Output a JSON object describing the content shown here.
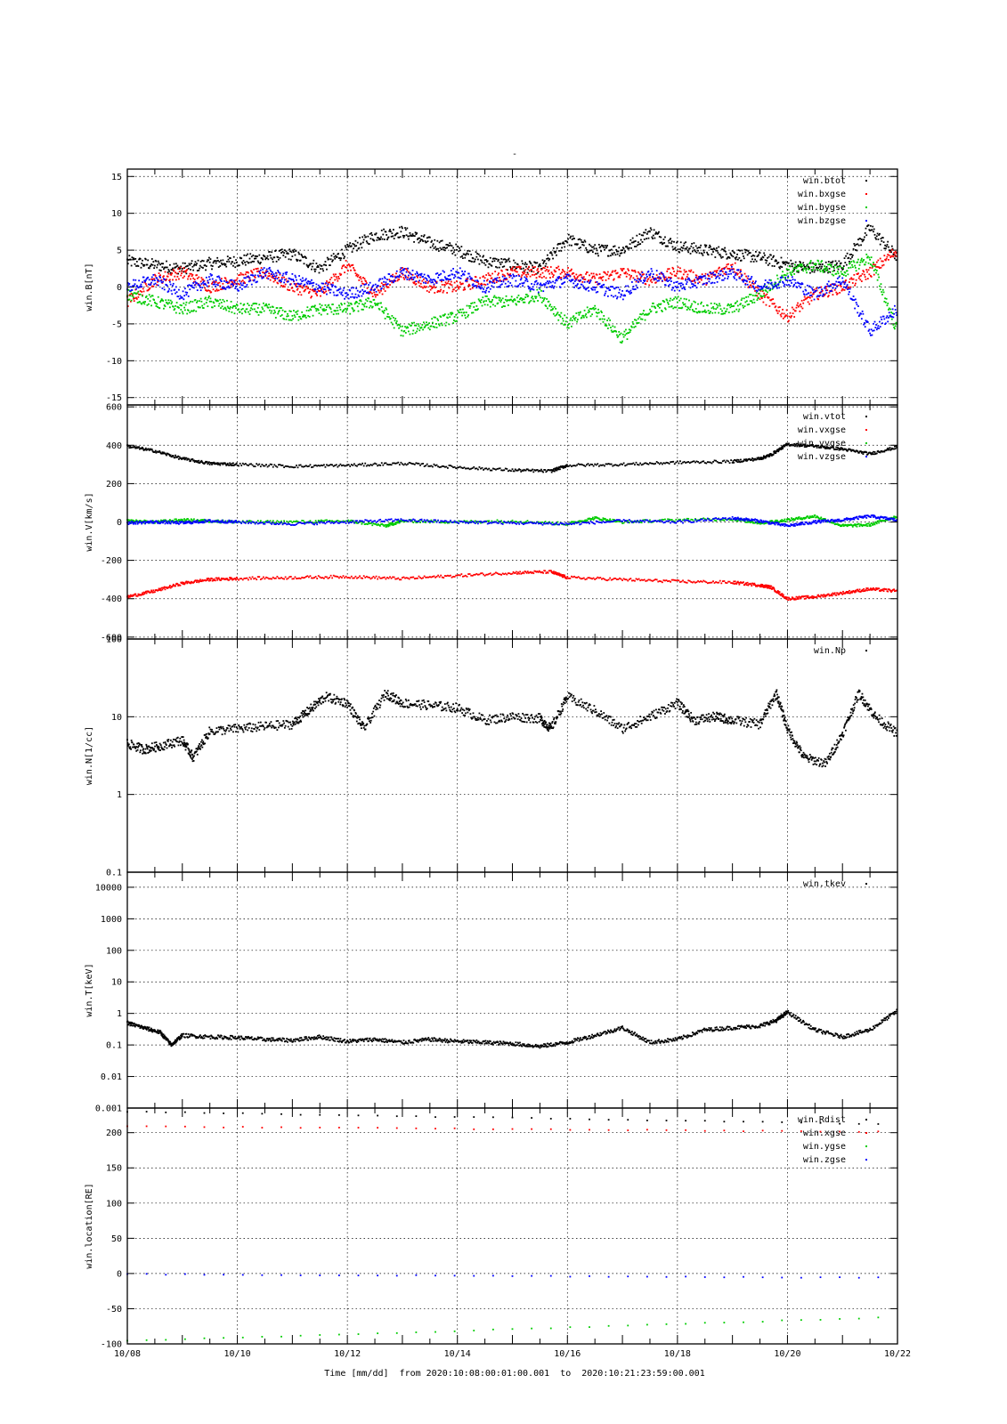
{
  "title": "-",
  "chart_data": [
    {
      "type": "scatter",
      "ylabel": "win.B[nT]",
      "ylim": [
        -16,
        16
      ],
      "yticks": [
        -15,
        -10,
        -5,
        0,
        5,
        10,
        15
      ],
      "ytick_labels": [
        "-15",
        "-10",
        "-5",
        "0",
        "5",
        "10",
        "15"
      ],
      "legend_position": "top-right",
      "series": [
        {
          "name": "win.btot",
          "color": "#000000",
          "x": [
            0,
            0.5,
            1,
            1.5,
            2,
            2.5,
            3,
            3.5,
            4,
            4.5,
            5,
            5.5,
            6,
            6.5,
            7,
            7.5,
            8,
            8.5,
            9,
            9.5,
            10,
            10.5,
            11,
            11.5,
            12,
            12.5,
            13,
            13.5,
            14
          ],
          "y": [
            3.5,
            3,
            2.5,
            3.2,
            3.5,
            4,
            4.5,
            2.5,
            5,
            7,
            7.5,
            6,
            5,
            3.5,
            3,
            2.5,
            6.5,
            5,
            5,
            7.5,
            5.5,
            5,
            4.5,
            4,
            3,
            2.5,
            3,
            8,
            4
          ]
        },
        {
          "name": "win.bxgse",
          "color": "#ff0000",
          "x": [
            0,
            0.5,
            1,
            1.5,
            2,
            2.5,
            3,
            3.5,
            4,
            4.5,
            5,
            5.5,
            6,
            6.5,
            7,
            7.5,
            8,
            8.5,
            9,
            9.5,
            10,
            10.5,
            11,
            11.5,
            12,
            12.5,
            13,
            13.5,
            14
          ],
          "y": [
            -2,
            1,
            2,
            0,
            1,
            2,
            0,
            -1,
            3,
            -1,
            2,
            0,
            0,
            1,
            2,
            2,
            2,
            1,
            2,
            1,
            2,
            1,
            3,
            -1,
            -4,
            -1,
            0,
            2,
            5
          ]
        },
        {
          "name": "win.bygse",
          "color": "#00cc00",
          "x": [
            0,
            0.5,
            1,
            1.5,
            2,
            2.5,
            3,
            3.5,
            4,
            4.5,
            5,
            5.5,
            6,
            6.5,
            7,
            7.5,
            8,
            8.5,
            9,
            9.5,
            10,
            10.5,
            11,
            11.5,
            12,
            12.5,
            13,
            13.5,
            14
          ],
          "y": [
            -1,
            -2,
            -3,
            -2,
            -3,
            -3,
            -4,
            -3,
            -3,
            -2,
            -6,
            -5,
            -4,
            -2,
            -2,
            -1,
            -5,
            -3,
            -7,
            -3,
            -2,
            -3,
            -3,
            -1,
            2,
            3,
            2,
            4,
            -6
          ]
        },
        {
          "name": "win.bzgse",
          "color": "#0000ff",
          "x": [
            0,
            0.5,
            1,
            1.5,
            2,
            2.5,
            3,
            3.5,
            4,
            4.5,
            5,
            5.5,
            6,
            6.5,
            7,
            7.5,
            8,
            8.5,
            9,
            9.5,
            10,
            10.5,
            11,
            11.5,
            12,
            12.5,
            13,
            13.5,
            14
          ],
          "y": [
            0,
            1,
            -1,
            1,
            0,
            2,
            1,
            0,
            -1,
            0,
            2,
            1,
            2,
            0,
            1,
            0,
            1,
            0,
            -1,
            2,
            0,
            1,
            2,
            0,
            1,
            -1,
            1,
            -6,
            -3
          ]
        }
      ]
    },
    {
      "type": "scatter",
      "ylabel": "win.V[km/s]",
      "ylim": [
        -610,
        610
      ],
      "yticks": [
        -600,
        -400,
        -200,
        0,
        200,
        400,
        600
      ],
      "ytick_labels": [
        "-600",
        "-400",
        "-200",
        "0",
        "200",
        "400",
        "600"
      ],
      "legend_position": "top-right",
      "series": [
        {
          "name": "win.vtot",
          "color": "#000000",
          "x": [
            0,
            0.5,
            1,
            1.5,
            2,
            3,
            4,
            5,
            6,
            7,
            7.7,
            8,
            9,
            10,
            11,
            11.5,
            11.7,
            12,
            12.5,
            13,
            13.5,
            14
          ],
          "y": [
            395,
            370,
            330,
            305,
            300,
            290,
            295,
            305,
            285,
            270,
            265,
            295,
            300,
            310,
            315,
            330,
            350,
            405,
            395,
            380,
            355,
            390
          ]
        },
        {
          "name": "win.vxgse",
          "color": "#ff0000",
          "x": [
            0,
            0.5,
            1,
            1.5,
            2,
            3,
            4,
            5,
            6,
            7,
            7.7,
            8,
            9,
            10,
            11,
            11.5,
            11.7,
            12,
            12.5,
            13,
            13.5,
            14
          ],
          "y": [
            -390,
            -360,
            -320,
            -300,
            -295,
            -290,
            -285,
            -295,
            -280,
            -265,
            -260,
            -290,
            -300,
            -310,
            -315,
            -330,
            -340,
            -400,
            -390,
            -370,
            -350,
            -360
          ]
        },
        {
          "name": "win.vygse",
          "color": "#00cc00",
          "x": [
            0,
            0.5,
            1,
            1.5,
            2,
            3,
            4,
            4.7,
            5,
            6,
            7,
            8,
            8.5,
            9,
            10,
            11,
            11.5,
            12,
            12.5,
            13,
            13.5,
            14
          ],
          "y": [
            5,
            0,
            10,
            5,
            0,
            0,
            5,
            -20,
            5,
            0,
            5,
            -10,
            20,
            0,
            10,
            15,
            -5,
            10,
            30,
            -20,
            -15,
            30
          ]
        },
        {
          "name": "win.vzgse",
          "color": "#0000ff",
          "x": [
            0,
            0.5,
            1,
            1.5,
            2,
            3,
            4,
            5,
            6,
            7,
            8,
            9,
            10,
            11,
            11.5,
            12,
            12.5,
            13,
            13.5,
            14
          ],
          "y": [
            -5,
            0,
            -5,
            5,
            0,
            -10,
            0,
            10,
            0,
            -5,
            -10,
            5,
            0,
            20,
            5,
            -20,
            0,
            10,
            30,
            10
          ]
        }
      ]
    },
    {
      "type": "scatter",
      "ylabel": "win.N[1/cc]",
      "yscale": "log",
      "ylim": [
        0.1,
        100
      ],
      "yticks": [
        0.1,
        1,
        10,
        100
      ],
      "ytick_labels": [
        "0.1",
        "1",
        "10",
        "100"
      ],
      "legend_position": "top-right",
      "series": [
        {
          "name": "win.Np",
          "color": "#000000",
          "x": [
            0,
            0.3,
            0.6,
            1,
            1.2,
            1.5,
            2,
            2.5,
            3,
            3.3,
            3.6,
            4,
            4.3,
            4.7,
            5,
            5.5,
            6,
            6.5,
            7,
            7.5,
            7.7,
            8,
            8.5,
            9,
            9.5,
            10,
            10.3,
            10.7,
            11,
            11.5,
            11.8,
            12,
            12.3,
            12.7,
            13,
            13.3,
            13.6,
            14
          ],
          "y": [
            4.5,
            3.8,
            4.2,
            5,
            3,
            6.5,
            7,
            7.5,
            8,
            12,
            18,
            15,
            7,
            20,
            15,
            14,
            13,
            9,
            10,
            9.5,
            7,
            18,
            12,
            7,
            10,
            15,
            9,
            10,
            9,
            8,
            20,
            7,
            3,
            2.5,
            6,
            20,
            10,
            6
          ]
        }
      ]
    },
    {
      "type": "scatter",
      "ylabel": "win.T[keV]",
      "yscale": "log",
      "ylim": [
        0.001,
        30000
      ],
      "yticks": [
        0.001,
        0.01,
        0.1,
        1,
        10,
        100,
        1000,
        10000
      ],
      "ytick_labels": [
        "0.001",
        "0.01",
        "0.1",
        "1",
        "10",
        "100",
        "1000",
        "10000"
      ],
      "legend_position": "top-right",
      "series": [
        {
          "name": "win.tkev",
          "color": "#000000",
          "x": [
            0,
            0.3,
            0.6,
            0.8,
            1,
            1.5,
            2,
            2.5,
            3,
            3.5,
            4,
            4.5,
            5,
            5.5,
            6,
            6.5,
            7,
            7.5,
            8,
            8.5,
            9,
            9.5,
            10,
            10.5,
            11,
            11.5,
            11.8,
            12,
            12.5,
            13,
            13.5,
            14
          ],
          "y": [
            0.5,
            0.35,
            0.25,
            0.1,
            0.2,
            0.18,
            0.17,
            0.15,
            0.14,
            0.18,
            0.13,
            0.15,
            0.12,
            0.15,
            0.13,
            0.12,
            0.11,
            0.09,
            0.12,
            0.2,
            0.35,
            0.12,
            0.15,
            0.3,
            0.35,
            0.4,
            0.6,
            1.1,
            0.3,
            0.18,
            0.3,
            1.2
          ]
        }
      ]
    },
    {
      "type": "scatter",
      "ylabel": "win.location[RE]",
      "ylim": [
        -100,
        235
      ],
      "yticks": [
        -100,
        -50,
        0,
        50,
        100,
        150,
        200
      ],
      "ytick_labels": [
        "-100",
        "-50",
        "0",
        "50",
        "100",
        "150",
        "200"
      ],
      "legend_position": "top-right",
      "series": [
        {
          "name": "win.Rdist",
          "color": "#000000",
          "x": [
            0,
            14
          ],
          "y": [
            230,
            212
          ]
        },
        {
          "name": "win.xgse",
          "color": "#ff0000",
          "x": [
            0,
            14
          ],
          "y": [
            209,
            201
          ]
        },
        {
          "name": "win.ygse",
          "color": "#00cc00",
          "x": [
            0,
            14
          ],
          "y": [
            -96,
            -62
          ]
        },
        {
          "name": "win.zgse",
          "color": "#0000ff",
          "x": [
            0,
            14
          ],
          "y": [
            -1,
            -6
          ]
        }
      ]
    }
  ],
  "x_axis": {
    "ticks": [
      0,
      2,
      4,
      6,
      8,
      10,
      12,
      14
    ],
    "tick_labels": [
      "10/08",
      "10/10",
      "10/12",
      "10/14",
      "10/16",
      "10/18",
      "10/20",
      "10/22"
    ],
    "xlim": [
      0,
      14
    ],
    "footer": "Time [mm/dd]  from 2020:10:08:00:01:00.001  to  2020:10:21:23:59:00.001"
  }
}
